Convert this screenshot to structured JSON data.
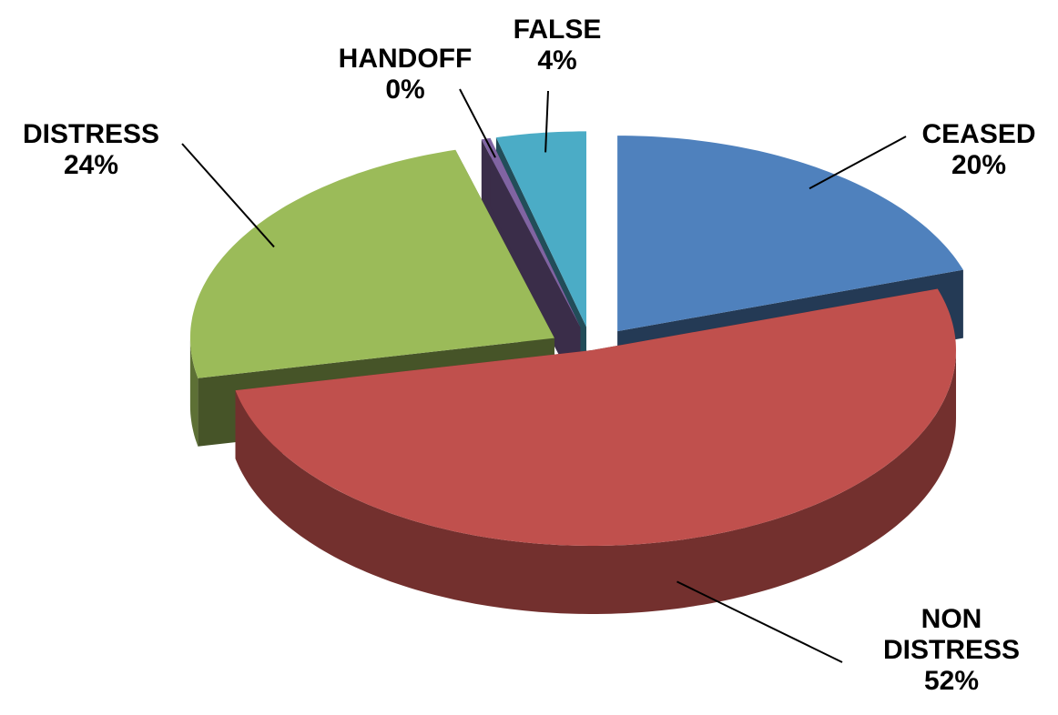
{
  "chart_data": {
    "type": "pie",
    "categories": [
      "CEASED",
      "NON DISTRESS",
      "DISTRESS",
      "HANDOFF",
      "FALSE"
    ],
    "values": [
      20,
      52,
      24,
      0.4,
      4
    ],
    "value_labels": [
      "20%",
      "52%",
      "24%",
      "0%",
      "4%"
    ],
    "colors": [
      "#4f81bd",
      "#c0504d",
      "#9bbb59",
      "#8064a2",
      "#4bacc6"
    ],
    "three_d": true,
    "exploded": true
  }
}
